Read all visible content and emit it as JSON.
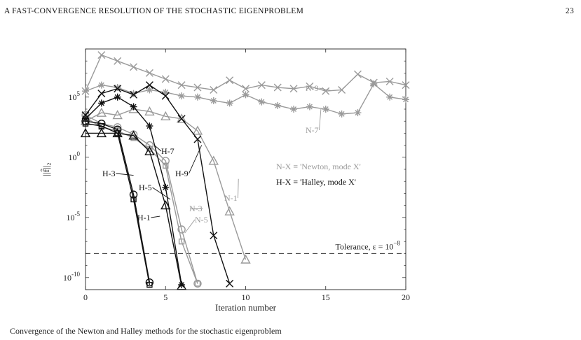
{
  "page": {
    "running_title": "A FAST-CONVERGENCE RESOLUTION OF THE STOCHASTIC EIGENPROBLEM",
    "page_number": "23",
    "caption_fragment": "Convergence of the Newton and Halley methods for the stochastic eigenproblem"
  },
  "chart_data": {
    "type": "line",
    "xlabel": "Iteration number",
    "ylabel": "||f̂||₂",
    "xlim": [
      0,
      20
    ],
    "ylim_log10": [
      -11,
      9
    ],
    "yscale": "log",
    "grid": false,
    "x_ticks": [
      "0",
      "5",
      "10",
      "15",
      "20"
    ],
    "y_ticks": [
      {
        "base": "10",
        "exp": "5",
        "value": 5
      },
      {
        "base": "10",
        "exp": "0",
        "value": 0
      },
      {
        "base": "10",
        "exp": "-5",
        "value": -5
      },
      {
        "base": "10",
        "exp": "-10",
        "value": -10
      }
    ],
    "tolerance": {
      "log10": -8,
      "label": "Tolerance, ε = 10",
      "exp": "−8"
    },
    "legend_lines": [
      {
        "label": "N-X ≡ 'Newton, mode X'",
        "color": "#9a9a9a"
      },
      {
        "label": "H-X ≡ 'Halley, mode X'",
        "color": "#111111"
      }
    ],
    "series": [
      {
        "name": "N-9",
        "color": "#9a9a9a",
        "marker": "x",
        "x": [
          0,
          1,
          2,
          3,
          4,
          5,
          6,
          7,
          8,
          9,
          10,
          11,
          12,
          13,
          14,
          15,
          16,
          17,
          18,
          19,
          20
        ],
        "log10_y": [
          5.5,
          8.5,
          8.0,
          7.5,
          7.0,
          6.5,
          6.0,
          5.8,
          5.6,
          6.4,
          5.7,
          6.0,
          5.8,
          5.7,
          5.9,
          5.5,
          5.6,
          6.9,
          6.2,
          6.3,
          6.0
        ]
      },
      {
        "name": "N-7",
        "color": "#9a9a9a",
        "marker": "star",
        "x": [
          0,
          1,
          2,
          3,
          4,
          5,
          6,
          7,
          8,
          9,
          10,
          11,
          12,
          13,
          14,
          15,
          16,
          17,
          18,
          19,
          20
        ],
        "log10_y": [
          5.5,
          6.0,
          5.8,
          5.3,
          5.6,
          5.4,
          5.1,
          5.0,
          4.7,
          4.5,
          5.2,
          4.6,
          4.3,
          4.0,
          4.2,
          4.0,
          3.6,
          3.7,
          6.1,
          5.0,
          4.8
        ]
      },
      {
        "name": "N-1",
        "color": "#9a9a9a",
        "marker": "triangle",
        "x": [
          0,
          1,
          2,
          3,
          4,
          5,
          6,
          7,
          8,
          9,
          10
        ],
        "log10_y": [
          3.0,
          3.7,
          3.5,
          4.0,
          3.8,
          3.4,
          3.2,
          2.2,
          -0.3,
          -4.5,
          -8.5
        ]
      },
      {
        "name": "N-3",
        "color": "#9a9a9a",
        "marker": "circle",
        "x": [
          0,
          1,
          2,
          3,
          4,
          5,
          6,
          7
        ],
        "log10_y": [
          3.5,
          2.8,
          2.5,
          1.9,
          1.0,
          -0.3,
          -6.0,
          -10.5
        ]
      },
      {
        "name": "N-5",
        "color": "#9a9a9a",
        "marker": "square",
        "x": [
          0,
          1,
          2,
          3,
          4,
          5,
          6,
          7
        ],
        "log10_y": [
          3.3,
          2.5,
          2.2,
          1.6,
          0.7,
          -0.7,
          -7.0,
          -10.5
        ]
      },
      {
        "name": "H-9",
        "color": "#111111",
        "marker": "x",
        "x": [
          0,
          1,
          2,
          3,
          4,
          5,
          6,
          7,
          8,
          9
        ],
        "log10_y": [
          3.5,
          5.3,
          5.7,
          5.2,
          6.0,
          5.1,
          3.2,
          1.5,
          -6.5,
          -10.5
        ]
      },
      {
        "name": "H-7",
        "color": "#111111",
        "marker": "star",
        "x": [
          0,
          1,
          2,
          3,
          4,
          5,
          6
        ],
        "log10_y": [
          3.2,
          4.5,
          5.0,
          4.2,
          2.6,
          -2.5,
          -10.6
        ]
      },
      {
        "name": "H-5",
        "color": "#111111",
        "marker": "triangle",
        "x": [
          0,
          1,
          2,
          3,
          4,
          5,
          6
        ],
        "log10_y": [
          2.0,
          2.0,
          2.0,
          1.8,
          0.5,
          -4.0,
          -10.7
        ]
      },
      {
        "name": "H-3",
        "color": "#111111",
        "marker": "circle",
        "x": [
          0,
          1,
          2,
          3,
          4
        ],
        "log10_y": [
          3.0,
          2.8,
          2.3,
          -3.1,
          -10.4
        ]
      },
      {
        "name": "H-1",
        "color": "#111111",
        "marker": "square",
        "x": [
          0,
          1,
          2,
          3,
          4
        ],
        "log10_y": [
          2.8,
          2.6,
          2.0,
          -3.5,
          -10.6
        ]
      }
    ],
    "annotations": [
      {
        "text": "N-9",
        "series": "N-9"
      },
      {
        "text": "N-7",
        "series": "N-7"
      },
      {
        "text": "N-1",
        "series": "N-1"
      },
      {
        "text": "N-3",
        "series": "N-3"
      },
      {
        "text": "N-5",
        "series": "N-5"
      },
      {
        "text": "H-9",
        "series": "H-9"
      },
      {
        "text": "H-7",
        "series": "H-7"
      },
      {
        "text": "H-5",
        "series": "H-5"
      },
      {
        "text": "H-3",
        "series": "H-3"
      },
      {
        "text": "H-1",
        "series": "H-1"
      }
    ]
  }
}
